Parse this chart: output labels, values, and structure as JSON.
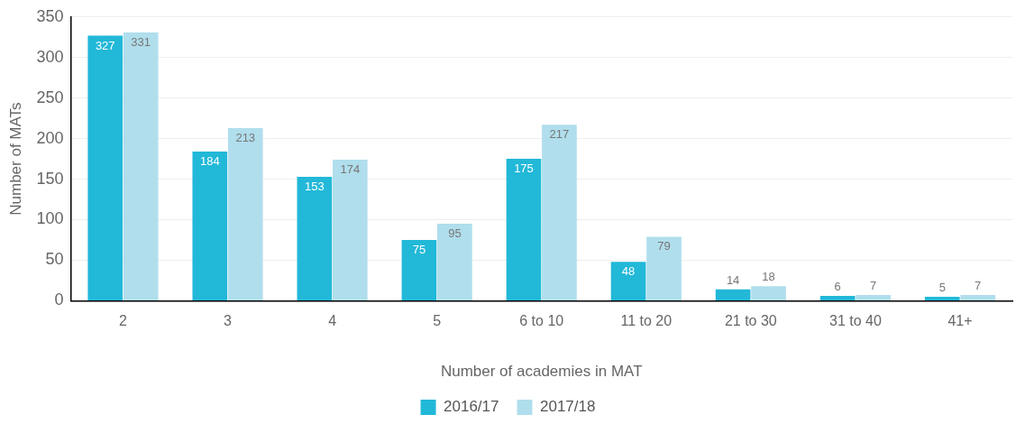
{
  "chart_data": {
    "type": "bar",
    "xlabel": "Number of academies in MAT",
    "ylabel": "Number of MATs",
    "categories": [
      "2",
      "3",
      "4",
      "5",
      "6 to 10",
      "11 to 20",
      "21 to 30",
      "31 to 40",
      "41+"
    ],
    "series": [
      {
        "name": "2016/17",
        "color": "#22b8d8",
        "values": [
          327,
          184,
          153,
          75,
          175,
          48,
          14,
          6,
          5
        ]
      },
      {
        "name": "2017/18",
        "color": "#b0deec",
        "values": [
          331,
          213,
          174,
          95,
          217,
          79,
          18,
          7,
          7
        ]
      }
    ],
    "ylim": [
      0,
      350
    ],
    "yticks": [
      0,
      50,
      100,
      150,
      200,
      250,
      300,
      350
    ],
    "grid": "y",
    "legend": "bottom",
    "data_labels": true
  }
}
